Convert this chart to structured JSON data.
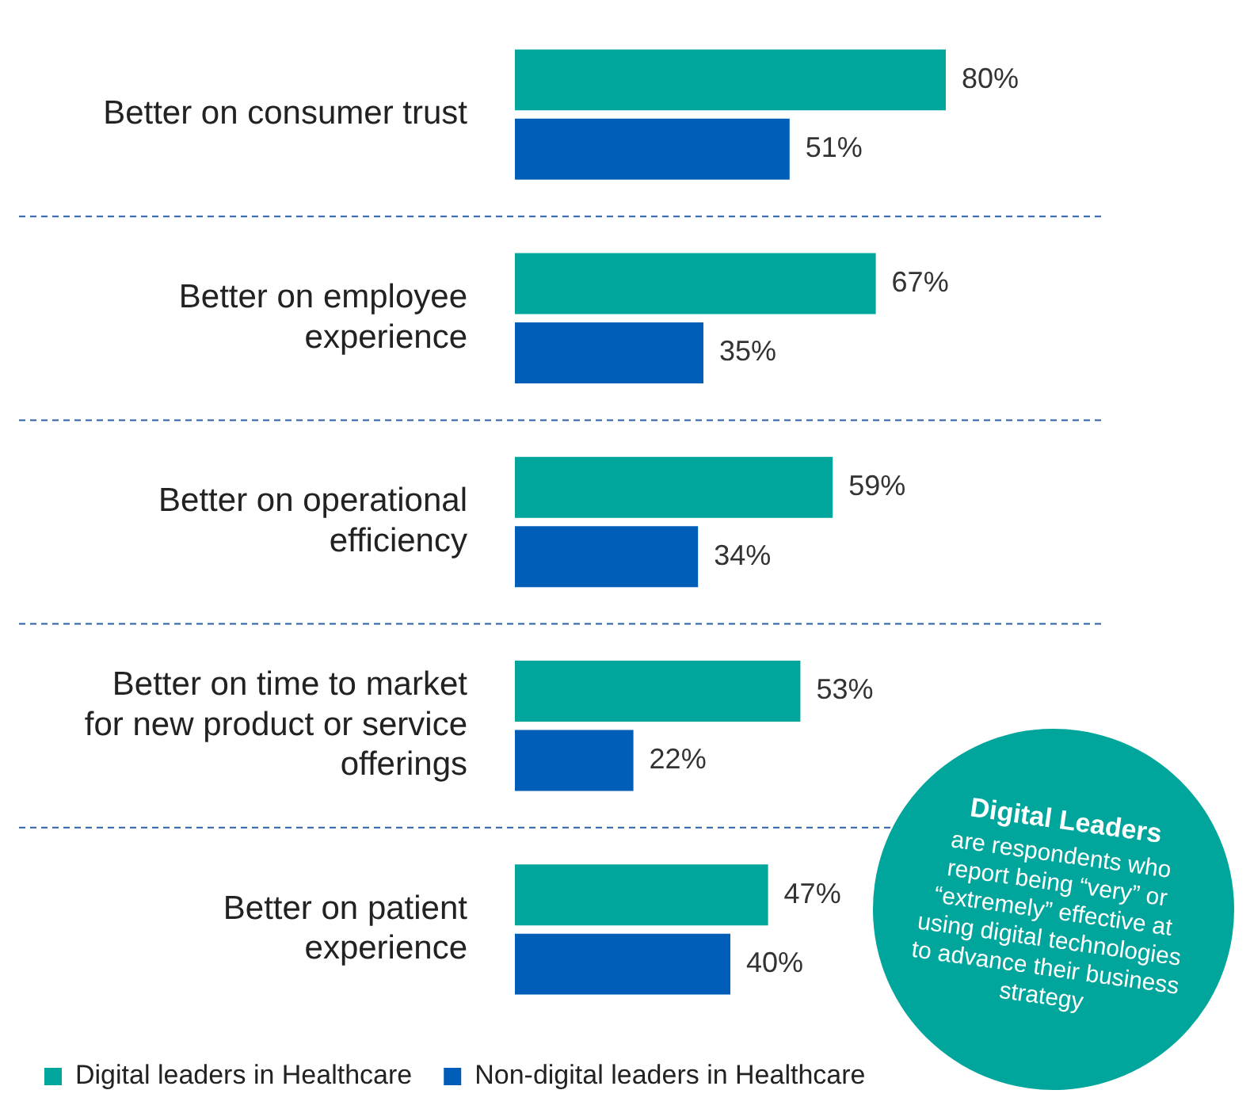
{
  "chart_data": {
    "type": "bar",
    "orientation": "horizontal",
    "categories": [
      "Better on consumer trust",
      "Better on employee experience",
      "Better on operational efficiency",
      "Better on time to market for new product or service offerings",
      "Better on patient experience"
    ],
    "series": [
      {
        "name": "Digital leaders in Healthcare",
        "color": "#00a59b",
        "values": [
          80,
          67,
          59,
          53,
          47
        ],
        "value_labels": [
          "80%",
          "67%",
          "59%",
          "53%",
          "47%"
        ]
      },
      {
        "name": "Non-digital leaders in Healthcare",
        "color": "#005eb8",
        "values": [
          51,
          35,
          34,
          22,
          40
        ],
        "value_labels": [
          "51%",
          "35%",
          "34%",
          "22%",
          "40%"
        ]
      }
    ],
    "legend": "bottom left",
    "annotations": [
      "Digital Leaders",
      "are respondents who report being “very” or “extremely” effective at using digital technologies to advance their business strategy"
    ]
  }
}
